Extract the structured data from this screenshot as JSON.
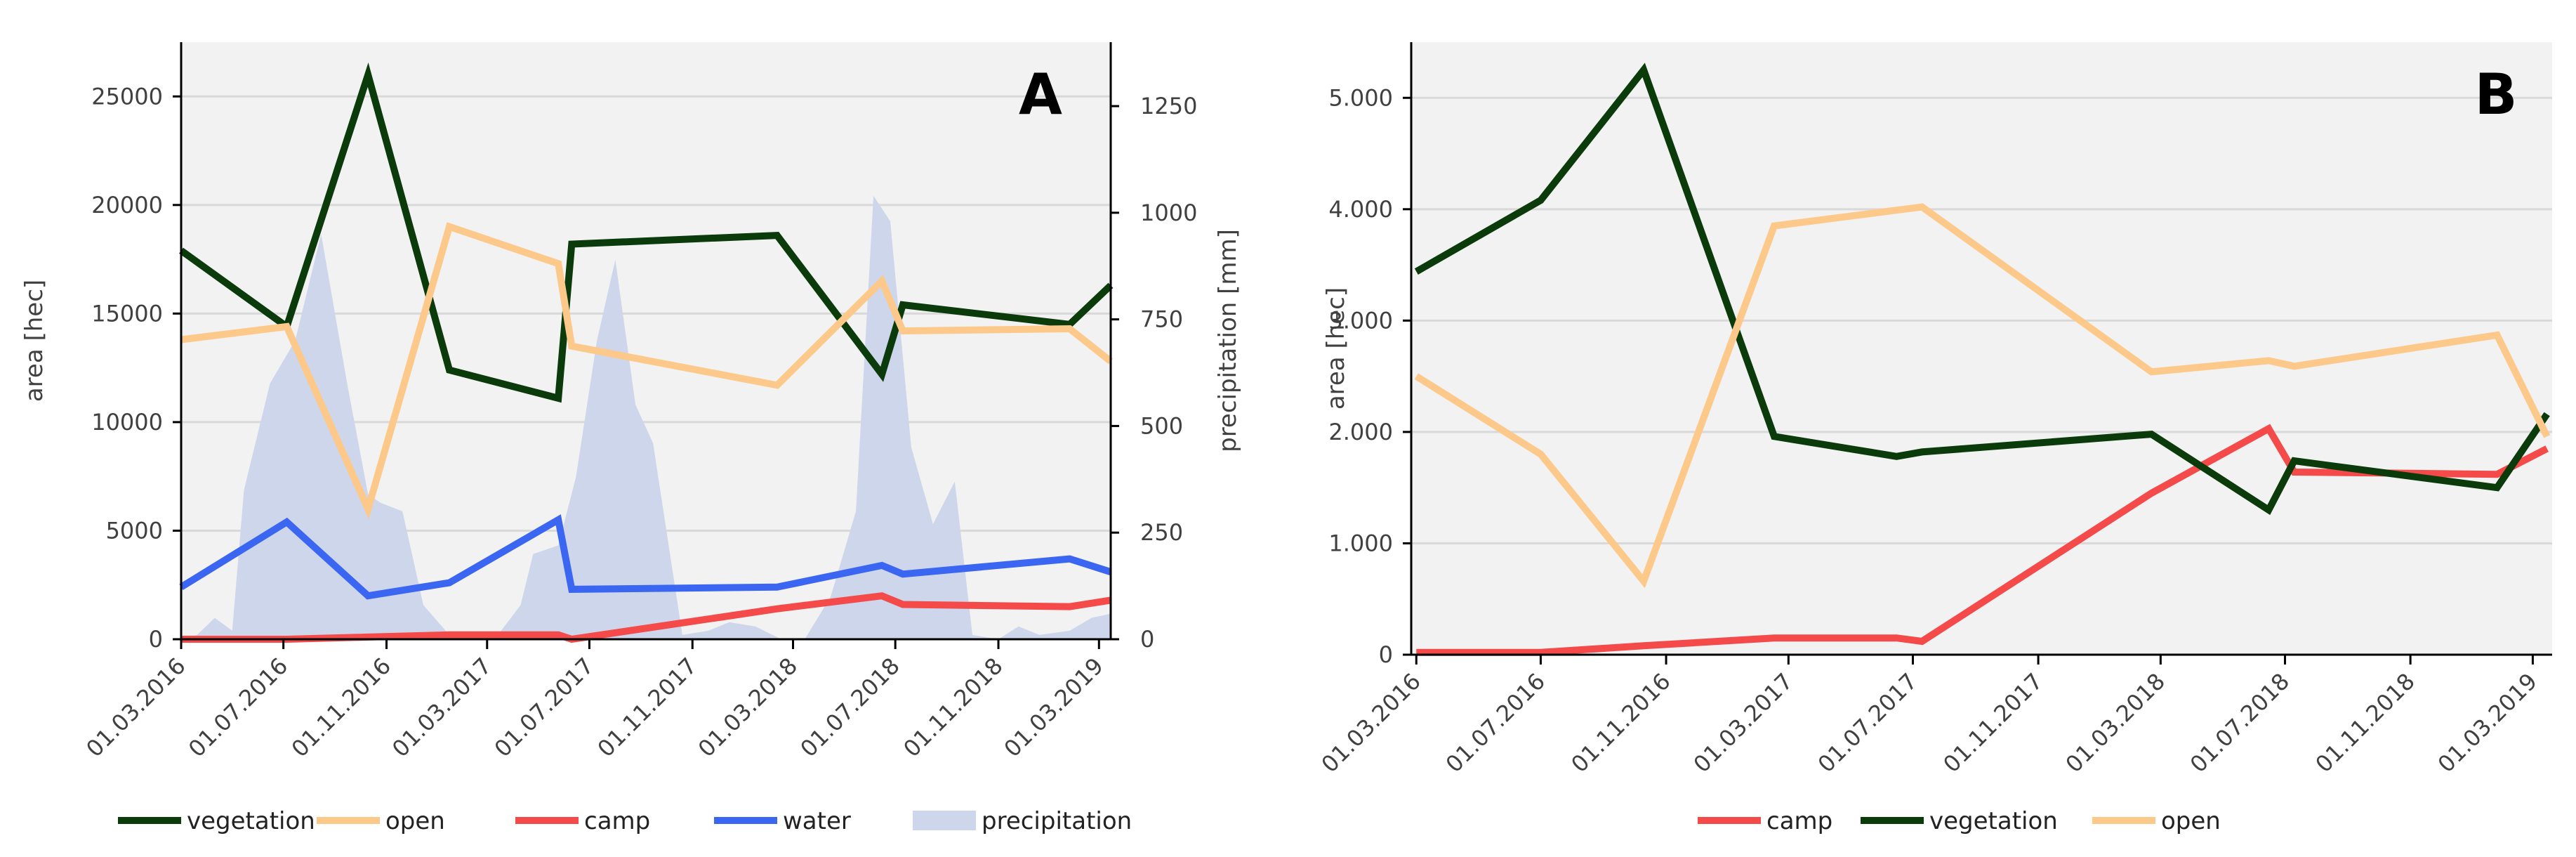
{
  "chart_data": [
    {
      "type": "line",
      "panel_label": "A",
      "ylabel": "area [hec]",
      "y2label": "precipitation [mm]",
      "ylim": [
        0,
        27500
      ],
      "y2lim": [
        0,
        1400
      ],
      "y_ticks": [
        0,
        5000,
        10000,
        15000,
        20000,
        25000
      ],
      "y2_ticks": [
        0,
        250,
        500,
        750,
        1000,
        1250
      ],
      "x_range": [
        "2016-03-01",
        "2019-03-15"
      ],
      "x_ticks": [
        "01.03.2016",
        "01.07.2016",
        "01.11.2016",
        "01.03.2017",
        "01.07.2017",
        "01.11.2017",
        "01.03.2018",
        "01.07.2018",
        "01.11.2018",
        "01.03.2019"
      ],
      "grid": true,
      "legend_position": "bottom",
      "series": [
        {
          "name": "vegetation",
          "color": "#0b3a0b",
          "axis": "left",
          "points": [
            [
              "2016-03-01",
              17900
            ],
            [
              "2016-07-05",
              14400
            ],
            [
              "2016-10-10",
              26000
            ],
            [
              "2017-01-15",
              12400
            ],
            [
              "2017-05-25",
              11100
            ],
            [
              "2017-06-10",
              18200
            ],
            [
              "2018-02-10",
              18600
            ],
            [
              "2018-06-15",
              12200
            ],
            [
              "2018-07-10",
              15400
            ],
            [
              "2019-01-25",
              14500
            ],
            [
              "2019-03-15",
              16300
            ]
          ]
        },
        {
          "name": "open",
          "color": "#fcc98a",
          "axis": "left",
          "points": [
            [
              "2016-03-01",
              13800
            ],
            [
              "2016-07-05",
              14400
            ],
            [
              "2016-10-10",
              6000
            ],
            [
              "2017-01-15",
              19000
            ],
            [
              "2017-05-25",
              17300
            ],
            [
              "2017-06-10",
              13500
            ],
            [
              "2018-02-10",
              11700
            ],
            [
              "2018-06-15",
              16500
            ],
            [
              "2018-07-10",
              14200
            ],
            [
              "2019-01-25",
              14300
            ],
            [
              "2019-03-15",
              12800
            ]
          ]
        },
        {
          "name": "camp",
          "color": "#f44a4a",
          "axis": "left",
          "points": [
            [
              "2016-03-01",
              0
            ],
            [
              "2016-07-05",
              0
            ],
            [
              "2016-10-10",
              100
            ],
            [
              "2017-01-15",
              200
            ],
            [
              "2017-05-25",
              200
            ],
            [
              "2017-06-10",
              0
            ],
            [
              "2018-02-10",
              1400
            ],
            [
              "2018-06-15",
              2000
            ],
            [
              "2018-07-10",
              1600
            ],
            [
              "2019-01-25",
              1500
            ],
            [
              "2019-03-15",
              1800
            ]
          ]
        },
        {
          "name": "water",
          "color": "#3a66f2",
          "axis": "left",
          "points": [
            [
              "2016-03-01",
              2400
            ],
            [
              "2016-07-05",
              5400
            ],
            [
              "2016-10-10",
              2000
            ],
            [
              "2017-01-15",
              2600
            ],
            [
              "2017-05-25",
              5500
            ],
            [
              "2017-06-10",
              2300
            ],
            [
              "2018-02-10",
              2400
            ],
            [
              "2018-06-15",
              3400
            ],
            [
              "2018-07-10",
              3000
            ],
            [
              "2019-01-25",
              3700
            ],
            [
              "2019-03-15",
              3100
            ]
          ]
        },
        {
          "name": "precipitation",
          "color": "#cdd6ea",
          "axis": "right",
          "style": "area",
          "points": [
            [
              "2016-03-01",
              0
            ],
            [
              "2016-03-20",
              10
            ],
            [
              "2016-04-10",
              50
            ],
            [
              "2016-05-01",
              20
            ],
            [
              "2016-05-15",
              350
            ],
            [
              "2016-06-15",
              600
            ],
            [
              "2016-07-15",
              700
            ],
            [
              "2016-08-15",
              950
            ],
            [
              "2016-09-15",
              600
            ],
            [
              "2016-10-10",
              340
            ],
            [
              "2016-10-25",
              320
            ],
            [
              "2016-11-20",
              300
            ],
            [
              "2016-12-15",
              80
            ],
            [
              "2017-01-15",
              10
            ],
            [
              "2017-02-10",
              0
            ],
            [
              "2017-03-10",
              0
            ],
            [
              "2017-04-10",
              80
            ],
            [
              "2017-04-25",
              200
            ],
            [
              "2017-05-25",
              220
            ],
            [
              "2017-06-15",
              380
            ],
            [
              "2017-07-10",
              700
            ],
            [
              "2017-08-01",
              890
            ],
            [
              "2017-08-25",
              550
            ],
            [
              "2017-09-15",
              460
            ],
            [
              "2017-10-20",
              10
            ],
            [
              "2017-11-20",
              20
            ],
            [
              "2017-12-15",
              40
            ],
            [
              "2018-01-15",
              30
            ],
            [
              "2018-02-15",
              0
            ],
            [
              "2018-03-15",
              0
            ],
            [
              "2018-04-15",
              100
            ],
            [
              "2018-05-15",
              300
            ],
            [
              "2018-06-05",
              1040
            ],
            [
              "2018-06-25",
              980
            ],
            [
              "2018-07-20",
              450
            ],
            [
              "2018-08-15",
              270
            ],
            [
              "2018-09-10",
              370
            ],
            [
              "2018-10-01",
              10
            ],
            [
              "2018-11-01",
              0
            ],
            [
              "2018-11-25",
              30
            ],
            [
              "2018-12-20",
              10
            ],
            [
              "2019-01-25",
              20
            ],
            [
              "2019-02-20",
              50
            ],
            [
              "2019-03-15",
              60
            ]
          ]
        }
      ],
      "legend": [
        "vegetation",
        "open",
        "camp",
        "water",
        "precipitation"
      ]
    },
    {
      "type": "line",
      "panel_label": "B",
      "ylabel": "area [hec]",
      "ylim": [
        0,
        5500
      ],
      "y_ticks": [
        0,
        1000,
        2000,
        3000,
        4000,
        5000
      ],
      "y_tick_labels": [
        "0",
        "1.000",
        "2.000",
        "3.000",
        "4.000",
        "5.000"
      ],
      "x_range": [
        "2016-02-25",
        "2019-03-20"
      ],
      "x_ticks": [
        "01.03.2016",
        "01.07.2016",
        "01.11.2016",
        "01.03.2017",
        "01.07.2017",
        "01.11.2017",
        "01.03.2018",
        "01.07.2018",
        "01.11.2018",
        "01.03.2019"
      ],
      "grid": true,
      "legend_position": "bottom",
      "series": [
        {
          "name": "camp",
          "color": "#f44a4a",
          "points": [
            [
              "2016-03-01",
              20
            ],
            [
              "2016-07-01",
              20
            ],
            [
              "2016-10-10",
              80
            ],
            [
              "2017-02-15",
              150
            ],
            [
              "2017-06-15",
              150
            ],
            [
              "2017-07-10",
              120
            ],
            [
              "2018-02-20",
              1450
            ],
            [
              "2018-06-15",
              2030
            ],
            [
              "2018-07-10",
              1640
            ],
            [
              "2019-01-25",
              1620
            ],
            [
              "2019-03-15",
              1850
            ]
          ]
        },
        {
          "name": "vegetation",
          "color": "#0b3a0b",
          "points": [
            [
              "2016-03-01",
              3440
            ],
            [
              "2016-07-01",
              4080
            ],
            [
              "2016-10-10",
              5250
            ],
            [
              "2017-02-15",
              1960
            ],
            [
              "2017-06-15",
              1780
            ],
            [
              "2017-07-10",
              1820
            ],
            [
              "2018-02-20",
              1980
            ],
            [
              "2018-06-15",
              1300
            ],
            [
              "2018-07-10",
              1740
            ],
            [
              "2019-01-25",
              1500
            ],
            [
              "2019-03-15",
              2160
            ]
          ]
        },
        {
          "name": "open",
          "color": "#fcc98a",
          "points": [
            [
              "2016-03-01",
              2500
            ],
            [
              "2016-07-01",
              1800
            ],
            [
              "2016-10-10",
              660
            ],
            [
              "2017-02-15",
              3850
            ],
            [
              "2017-07-10",
              4020
            ],
            [
              "2018-02-20",
              2540
            ],
            [
              "2018-06-15",
              2640
            ],
            [
              "2018-07-10",
              2590
            ],
            [
              "2019-01-25",
              2870
            ],
            [
              "2019-03-15",
              1960
            ]
          ]
        }
      ],
      "legend": [
        "camp",
        "vegetation",
        "open"
      ]
    }
  ]
}
